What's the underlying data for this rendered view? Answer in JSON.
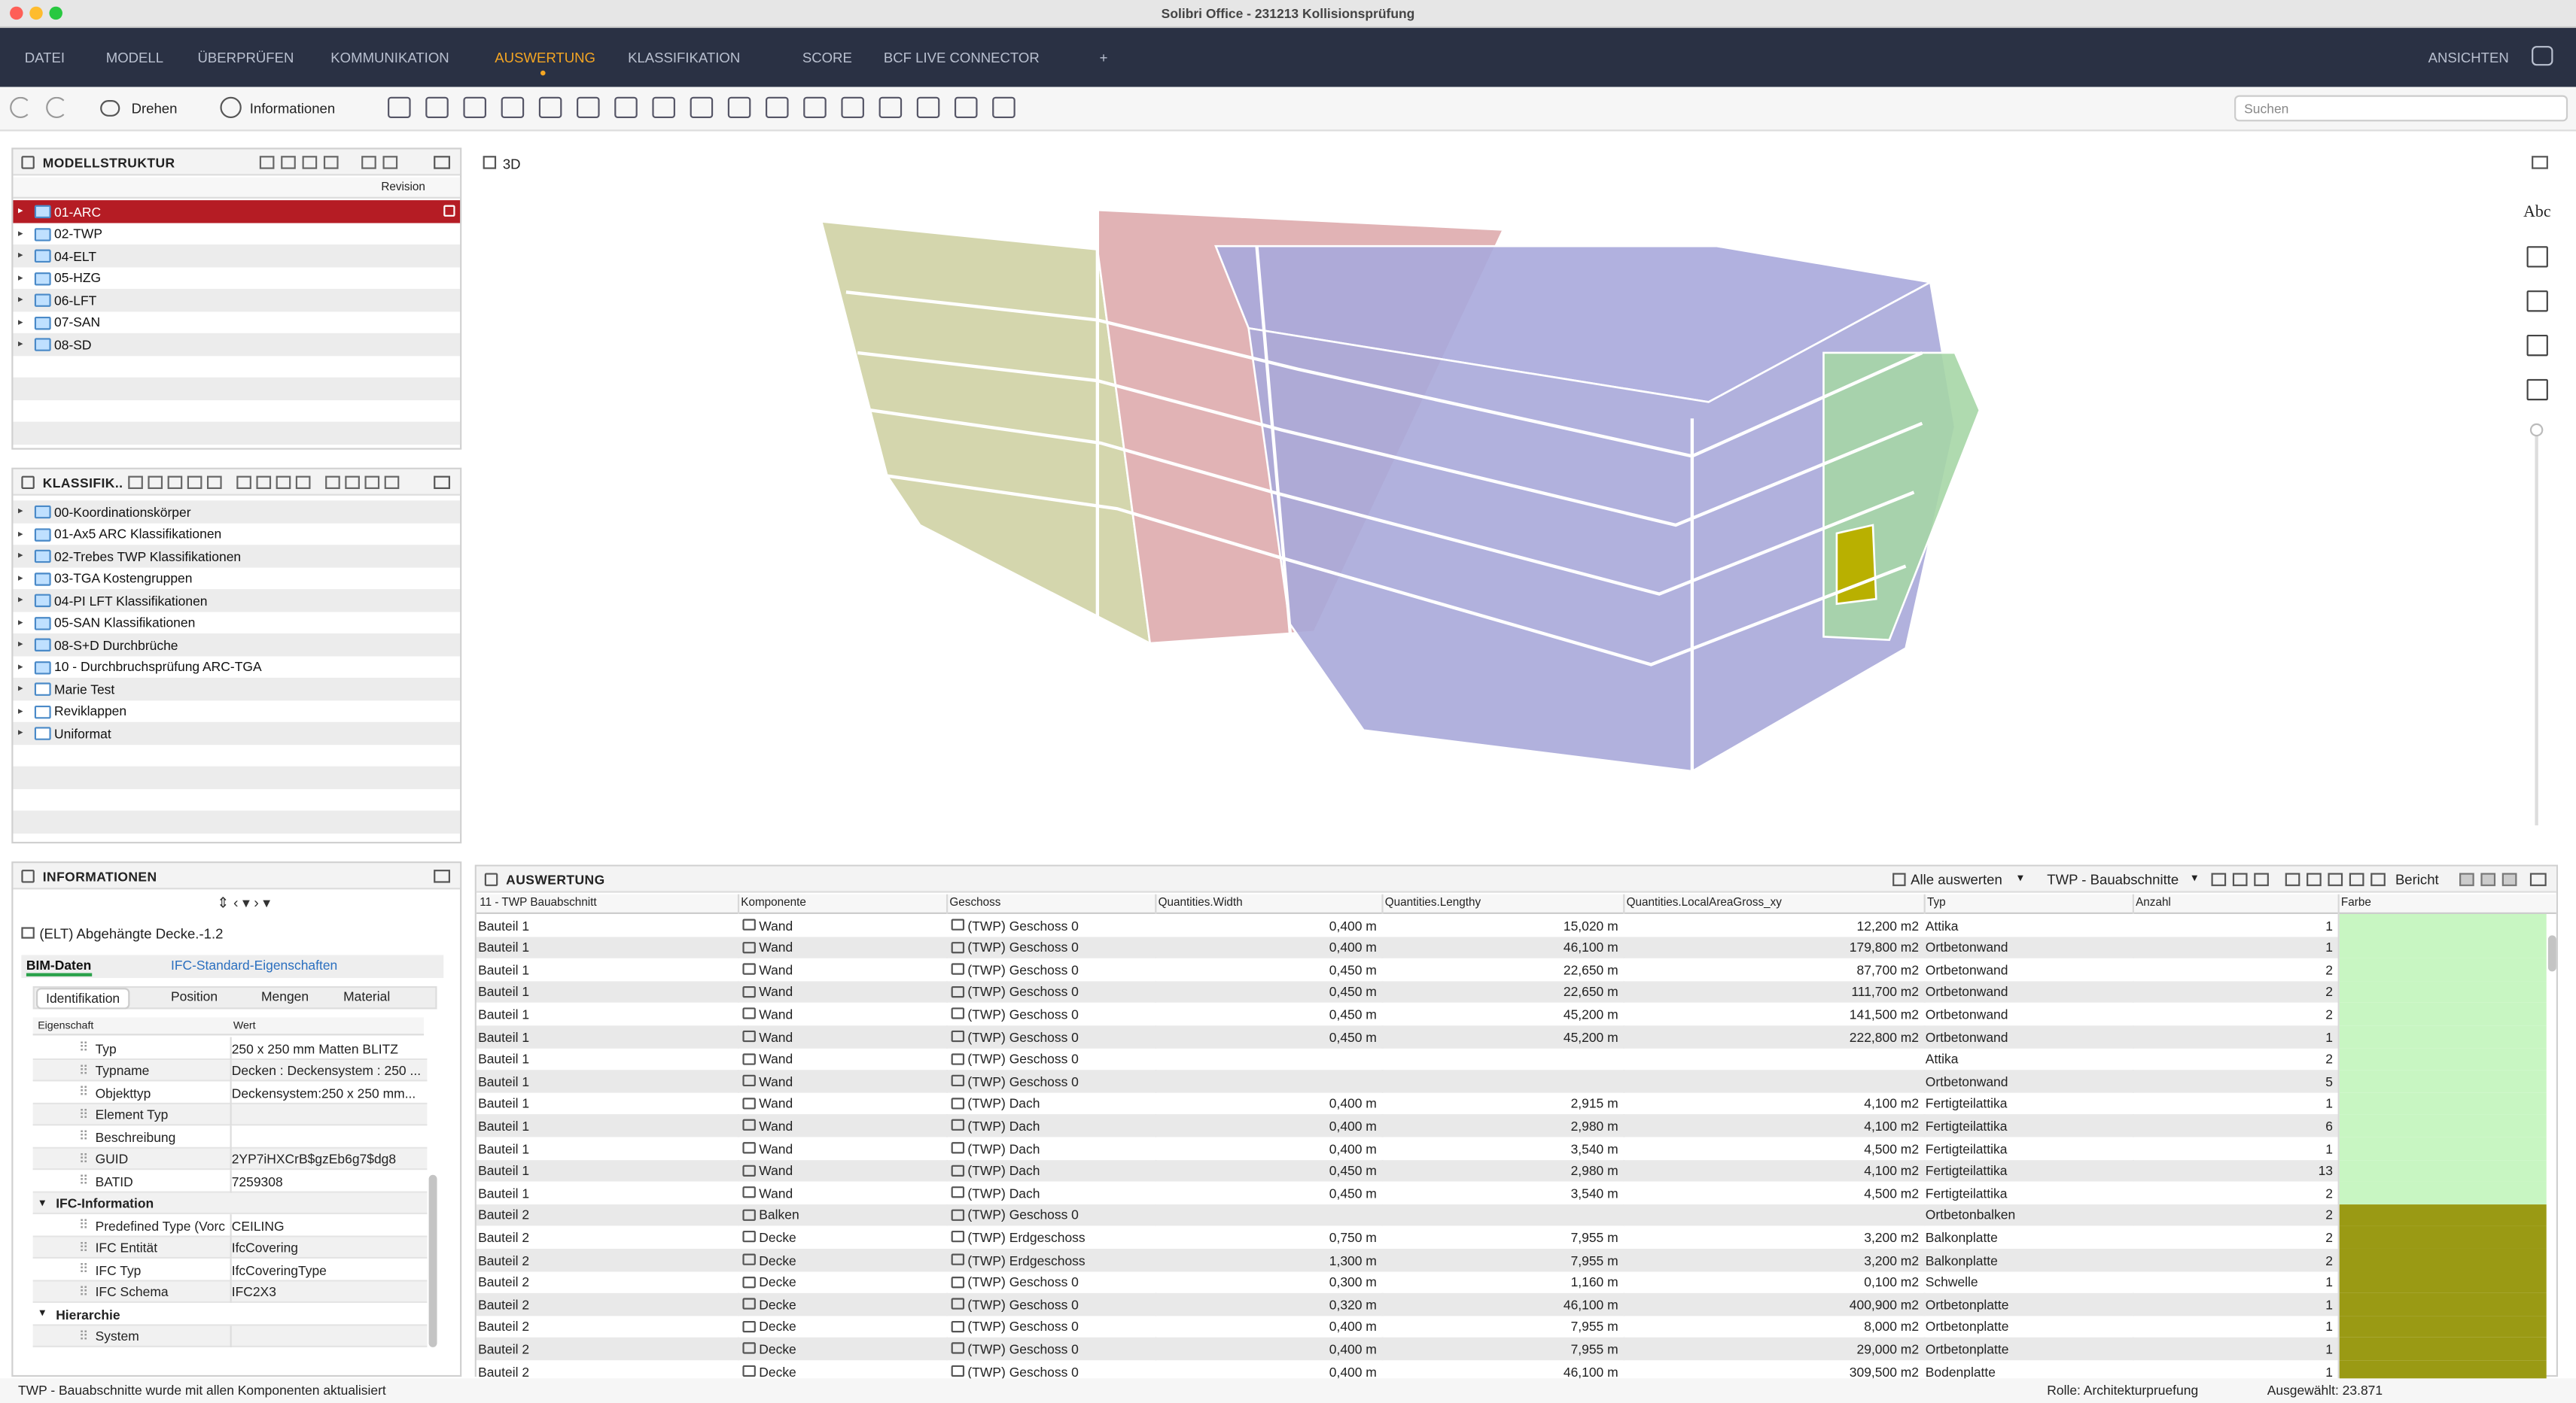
{
  "window_title": "Solibri Office - 231213 Kollisionsprüfung",
  "menu": {
    "items": [
      "DATEI",
      "MODELL",
      "ÜBERPRÜFEN",
      "KOMMUNIKATION",
      "AUSWERTUNG",
      "KLASSIFIKATION",
      "SCORE",
      "BCF LIVE CONNECTOR",
      "+"
    ],
    "active": 4,
    "right": "ANSICHTEN"
  },
  "toolbar": {
    "rotate": "Drehen",
    "info": "Informationen",
    "search_placeholder": "Suchen"
  },
  "model_structure": {
    "title": "MODELLSTRUKTUR",
    "column": "Revision",
    "selected": 0,
    "items": [
      "01-ARC",
      "02-TWP",
      "04-ELT",
      "05-HZG",
      "06-LFT",
      "07-SAN",
      "08-SD"
    ]
  },
  "classification": {
    "title": "KLASSIFIK..",
    "items": [
      "00-Koordinationskörper",
      "01-Ax5 ARC Klassifikationen",
      "02-Trebes TWP Klassifikationen",
      "03-TGA Kostengruppen",
      "04-PI LFT Klassifikationen",
      "05-SAN Klassifikationen",
      "08-S+D Durchbrüche",
      "10 - Durchbruchsprüfung ARC-TGA",
      "Marie Test",
      "Reviklappen",
      "Uniformat"
    ]
  },
  "information": {
    "title": "INFORMATIONEN",
    "component": "(ELT) Abgehängte Decke.-1.2",
    "tabs": [
      "BIM-Daten",
      "IFC-Standard-Eigenschaften"
    ],
    "subtabs": [
      "Identifikation",
      "Position",
      "Mengen",
      "Material"
    ],
    "columns": [
      "Eigenschaft",
      "Wert"
    ],
    "properties": [
      {
        "name": "Typ",
        "value": "250 x 250 mm Matten BLITZ"
      },
      {
        "name": "Typname",
        "value": "Decken : Deckensystem : 250 ..."
      },
      {
        "name": "Objekttyp",
        "value": "Deckensystem:250 x 250 mm..."
      },
      {
        "name": "Element Typ"
      },
      {
        "name": "Beschreibung"
      },
      {
        "name": "GUID",
        "value": "2YP7iHXCrB$gzEb6g7$dg8"
      },
      {
        "name": "BATID",
        "value": "7259308"
      },
      {
        "group": "IFC-Information"
      },
      {
        "name": "Predefined Type (Vorc",
        "value": "CEILING"
      },
      {
        "name": "IFC Entität",
        "value": "IfcCovering"
      },
      {
        "name": "IFC Typ",
        "value": "IfcCoveringType"
      },
      {
        "name": "IFC Schema",
        "value": "IFC2X3"
      },
      {
        "group": "Hierarchie"
      },
      {
        "name": "System"
      }
    ]
  },
  "view3d": {
    "title": "3D",
    "side_label": "Abc"
  },
  "report": {
    "title": "AUSWERTUNG",
    "evaluate_all": "Alle auswerten",
    "ruleset": "TWP - Bauabschnitte",
    "report": "Bericht",
    "columns": [
      "11 - TWP Bauabschnitt",
      "Komponente",
      "Geschoss",
      "Quantities.Width",
      "Quantities.Lengthy",
      "Quantities.LocalAreaGross_xy",
      "Typ",
      "Anzahl",
      "Farbe"
    ],
    "rows": [
      {
        "cells": [
          "Bauteil 1",
          "Wand",
          "(TWP) Geschoss 0",
          "0,400 m",
          "15,020 m",
          "12,200 m2",
          "Attika",
          "1"
        ],
        "color": "#c8f6c2"
      },
      {
        "cells": [
          "Bauteil 1",
          "Wand",
          "(TWP) Geschoss 0",
          "0,400 m",
          "46,100 m",
          "179,800 m2",
          "Ortbetonwand",
          "1"
        ],
        "color": "#c8f6c2"
      },
      {
        "cells": [
          "Bauteil 1",
          "Wand",
          "(TWP) Geschoss 0",
          "0,450 m",
          "22,650 m",
          "87,700 m2",
          "Ortbetonwand",
          "2"
        ],
        "color": "#c8f6c2"
      },
      {
        "cells": [
          "Bauteil 1",
          "Wand",
          "(TWP) Geschoss 0",
          "0,450 m",
          "22,650 m",
          "111,700 m2",
          "Ortbetonwand",
          "2"
        ],
        "color": "#c8f6c2"
      },
      {
        "cells": [
          "Bauteil 1",
          "Wand",
          "(TWP) Geschoss 0",
          "0,450 m",
          "45,200 m",
          "141,500 m2",
          "Ortbetonwand",
          "2"
        ],
        "color": "#c8f6c2"
      },
      {
        "cells": [
          "Bauteil 1",
          "Wand",
          "(TWP) Geschoss 0",
          "0,450 m",
          "45,200 m",
          "222,800 m2",
          "Ortbetonwand",
          "1"
        ],
        "color": "#c8f6c2"
      },
      {
        "cells": [
          "Bauteil 1",
          "Wand",
          "(TWP) Geschoss 0",
          null,
          null,
          null,
          "Attika",
          "2"
        ],
        "color": "#c8f6c2"
      },
      {
        "cells": [
          "Bauteil 1",
          "Wand",
          "(TWP) Geschoss 0",
          null,
          null,
          null,
          "Ortbetonwand",
          "5"
        ],
        "color": "#c8f6c2"
      },
      {
        "cells": [
          "Bauteil 1",
          "Wand",
          "(TWP) Dach",
          "0,400 m",
          "2,915 m",
          "4,100 m2",
          "Fertigteilattika",
          "1"
        ],
        "color": "#c8f6c2"
      },
      {
        "cells": [
          "Bauteil 1",
          "Wand",
          "(TWP) Dach",
          "0,400 m",
          "2,980 m",
          "4,100 m2",
          "Fertigteilattika",
          "6"
        ],
        "color": "#c8f6c2"
      },
      {
        "cells": [
          "Bauteil 1",
          "Wand",
          "(TWP) Dach",
          "0,400 m",
          "3,540 m",
          "4,500 m2",
          "Fertigteilattika",
          "1"
        ],
        "color": "#c8f6c2"
      },
      {
        "cells": [
          "Bauteil 1",
          "Wand",
          "(TWP) Dach",
          "0,450 m",
          "2,980 m",
          "4,100 m2",
          "Fertigteilattika",
          "13"
        ],
        "color": "#c8f6c2"
      },
      {
        "cells": [
          "Bauteil 1",
          "Wand",
          "(TWP) Dach",
          "0,450 m",
          "3,540 m",
          "4,500 m2",
          "Fertigteilattika",
          "2"
        ],
        "color": "#c8f6c2"
      },
      {
        "cells": [
          "Bauteil 2",
          "Balken",
          "(TWP) Geschoss 0",
          null,
          null,
          null,
          "Ortbetonbalken",
          "2"
        ],
        "color": "#9a9a14"
      },
      {
        "cells": [
          "Bauteil 2",
          "Decke",
          "(TWP) Erdgeschoss",
          "0,750 m",
          "7,955 m",
          "3,200 m2",
          "Balkonplatte",
          "2"
        ],
        "color": "#9a9a14"
      },
      {
        "cells": [
          "Bauteil 2",
          "Decke",
          "(TWP) Erdgeschoss",
          "1,300 m",
          "7,955 m",
          "3,200 m2",
          "Balkonplatte",
          "2"
        ],
        "color": "#9a9a14"
      },
      {
        "cells": [
          "Bauteil 2",
          "Decke",
          "(TWP) Geschoss 0",
          "0,300 m",
          "1,160 m",
          "0,100 m2",
          "Schwelle",
          "1"
        ],
        "color": "#9a9a14"
      },
      {
        "cells": [
          "Bauteil 2",
          "Decke",
          "(TWP) Geschoss 0",
          "0,320 m",
          "46,100 m",
          "400,900 m2",
          "Ortbetonplatte",
          "1"
        ],
        "color": "#9a9a14"
      },
      {
        "cells": [
          "Bauteil 2",
          "Decke",
          "(TWP) Geschoss 0",
          "0,400 m",
          "7,955 m",
          "8,000 m2",
          "Ortbetonplatte",
          "1"
        ],
        "color": "#9a9a14"
      },
      {
        "cells": [
          "Bauteil 2",
          "Decke",
          "(TWP) Geschoss 0",
          "0,400 m",
          "7,955 m",
          "29,000 m2",
          "Ortbetonplatte",
          "1"
        ],
        "color": "#9a9a14"
      },
      {
        "cells": [
          "Bauteil 2",
          "Decke",
          "(TWP) Geschoss 0",
          "0,400 m",
          "46,100 m",
          "309,500 m2",
          "Bodenplatte",
          "1"
        ],
        "color": "#9a9a14"
      }
    ]
  },
  "status": {
    "message": "TWP - Bauabschnitte wurde mit allen Komponenten aktualisiert",
    "role": "Rolle: Architekturpruefung",
    "selected": "Ausgewählt: 23.871"
  }
}
